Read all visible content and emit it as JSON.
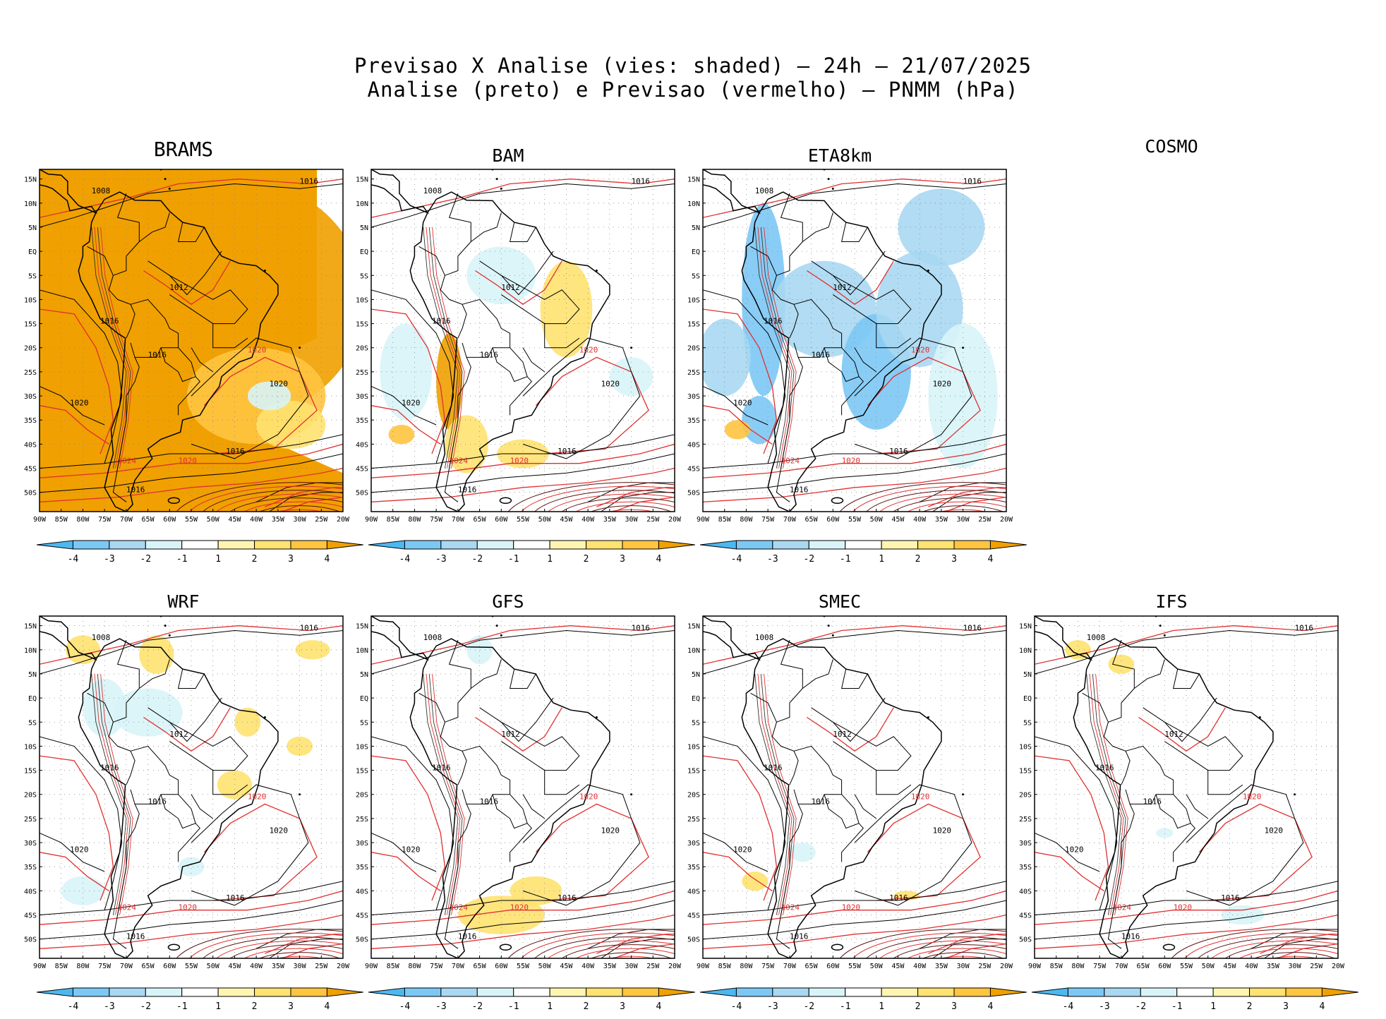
{
  "chart_data": {
    "type": "heatmap",
    "title": "Previsao X Analise (vies: shaded) – 24h – 21/07/2025",
    "subtitle": "Analise (preto) e Previsao (vermelho) – PNMM (hPa)",
    "variable": "PNMM (hPa)",
    "forecast_hour": "24h",
    "date": "21/07/2025",
    "lon_ticks": [
      "90W",
      "85W",
      "80W",
      "75W",
      "70W",
      "65W",
      "60W",
      "55W",
      "50W",
      "45W",
      "40W",
      "35W",
      "30W",
      "25W",
      "20W"
    ],
    "lat_ticks": [
      "15N",
      "10N",
      "5N",
      "EQ",
      "5S",
      "10S",
      "15S",
      "20S",
      "25S",
      "30S",
      "35S",
      "40S",
      "45S",
      "50S"
    ],
    "colorbar": {
      "labels": [
        "-4",
        "-3",
        "-2",
        "-1",
        "1",
        "2",
        "3",
        "4"
      ],
      "colors": [
        "#4db8f0",
        "#7cc8f5",
        "#a9d8f2",
        "#d8f4f8",
        "#ffffff",
        "#fff5b0",
        "#ffe270",
        "#ffc440",
        "#f0a000"
      ]
    },
    "analysis_color": "#000000",
    "forecast_color": "#e03030",
    "isobars": [
      "1008",
      "1012",
      "1016",
      "1020",
      "1024"
    ],
    "panels": [
      {
        "model": "BRAMS",
        "bias_state": "strong-positive"
      },
      {
        "model": "BAM",
        "bias_state": "mixed"
      },
      {
        "model": "ETA8km",
        "bias_state": "negative"
      },
      {
        "model": "COSMO",
        "bias_state": "no-data"
      },
      {
        "model": "WRF",
        "bias_state": "weak"
      },
      {
        "model": "GFS",
        "bias_state": "weak"
      },
      {
        "model": "SMEC",
        "bias_state": "weak"
      },
      {
        "model": "IFS",
        "bias_state": "weak"
      }
    ]
  }
}
